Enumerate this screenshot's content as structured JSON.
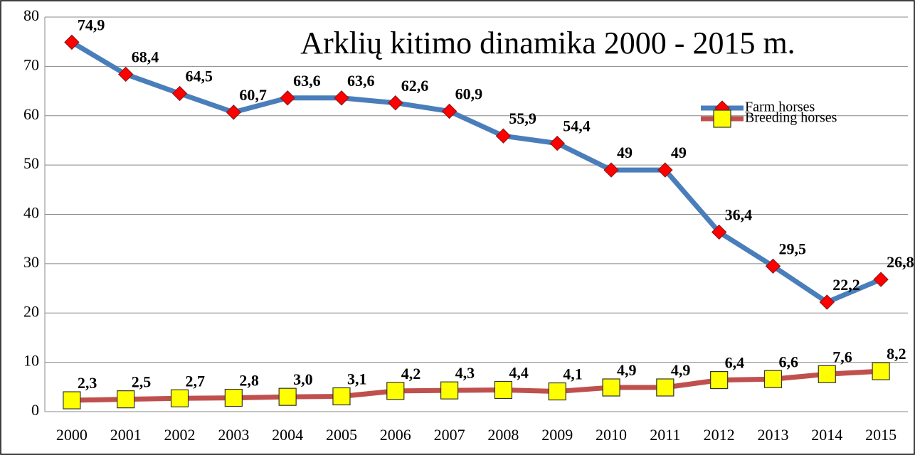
{
  "chart_data": {
    "type": "line",
    "title": "Arklių kitimo dinamika 2000 - 2015 m.",
    "categories": [
      "2000",
      "2001",
      "2002",
      "2003",
      "2004",
      "2005",
      "2006",
      "2007",
      "2008",
      "2009",
      "2010",
      "2011",
      "2012",
      "2013",
      "2014",
      "2015"
    ],
    "series": [
      {
        "name": "Farm horses",
        "color": "#4a7ebb",
        "marker_color": "#ff0000",
        "marker": "diamond",
        "values": [
          74.9,
          68.4,
          64.5,
          60.7,
          63.6,
          63.6,
          62.6,
          60.9,
          55.9,
          54.4,
          49,
          49,
          36.4,
          29.5,
          22.2,
          26.8
        ],
        "value_labels": [
          "74,9",
          "68,4",
          "64,5",
          "60,7",
          "63,6",
          "63,6",
          "62,6",
          "60,9",
          "55,9",
          "54,4",
          "49",
          "49",
          "36,4",
          "29,5",
          "22,2",
          "26,8"
        ]
      },
      {
        "name": "Breeding horses",
        "color": "#c0504d",
        "marker_color": "#ffff00",
        "marker": "square",
        "values": [
          2.3,
          2.5,
          2.7,
          2.8,
          3.0,
          3.1,
          4.2,
          4.3,
          4.4,
          4.1,
          4.9,
          4.9,
          6.4,
          6.6,
          7.6,
          8.2
        ],
        "value_labels": [
          "2,3",
          "2,5",
          "2,7",
          "2,8",
          "3,0",
          "3,1",
          "4,2",
          "4,3",
          "4,4",
          "4,1",
          "4,9",
          "4,9",
          "6,4",
          "6,6",
          "7,6",
          "8,2"
        ]
      }
    ],
    "ylim": [
      0,
      80
    ],
    "yticks": [
      0,
      10,
      20,
      30,
      40,
      50,
      60,
      70,
      80
    ],
    "grid": true,
    "legend": "upper right"
  }
}
